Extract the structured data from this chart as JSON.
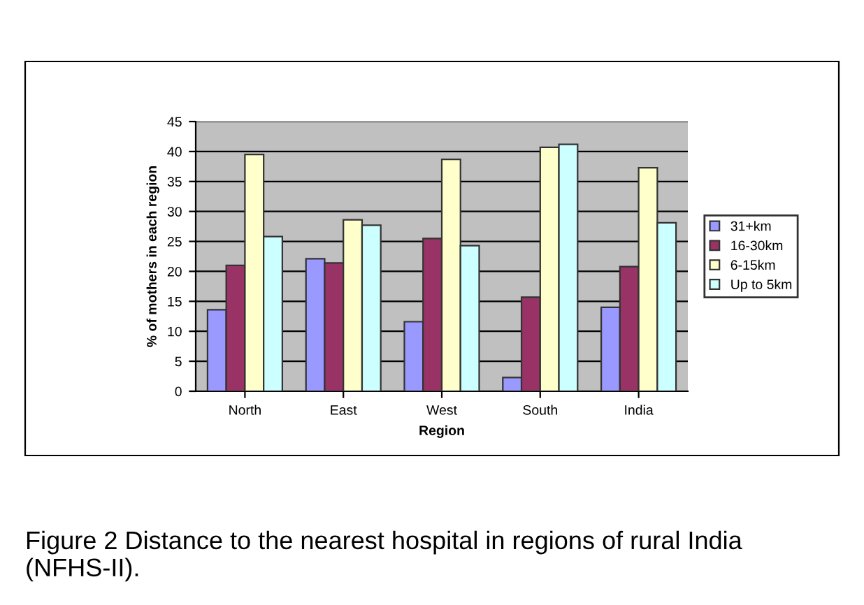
{
  "chart_data": {
    "type": "bar",
    "xlabel": "Region",
    "ylabel": "% of mothers in each region",
    "categories": [
      "North",
      "East",
      "West",
      "South",
      "India"
    ],
    "series": [
      {
        "name": "31+km",
        "color": "#9999ff",
        "values": [
          13.6,
          22.1,
          11.6,
          2.3,
          14.0
        ]
      },
      {
        "name": "16-30km",
        "color": "#993366",
        "values": [
          21.0,
          21.4,
          25.5,
          15.7,
          20.8
        ]
      },
      {
        "name": "6-15km",
        "color": "#ffffcc",
        "values": [
          39.5,
          28.6,
          38.7,
          40.7,
          37.3
        ]
      },
      {
        "name": "Up to 5km",
        "color": "#ccffff",
        "values": [
          25.8,
          27.7,
          24.3,
          41.2,
          28.1
        ]
      }
    ],
    "ylim": [
      0,
      45
    ],
    "yticks": [
      0,
      5,
      10,
      15,
      20,
      25,
      30,
      35,
      40,
      45
    ],
    "grid": "y",
    "legend": "right",
    "annotations": [
      "Figure 2 Distance to the nearest hospital in regions of rural India (NFHS-II)."
    ]
  }
}
